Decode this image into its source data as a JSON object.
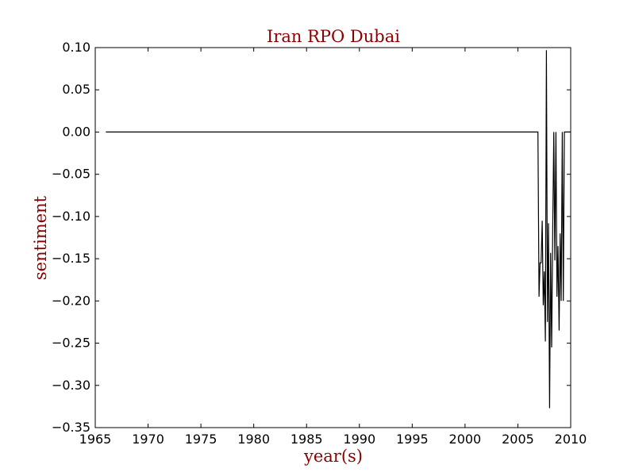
{
  "chart_data": {
    "type": "line",
    "title": "Iran RPO Dubai",
    "xlabel": "year(s)",
    "ylabel": "sentiment",
    "xlim": [
      1965,
      2010
    ],
    "ylim": [
      -0.35,
      0.1
    ],
    "x_ticks": [
      1965,
      1970,
      1975,
      1980,
      1985,
      1990,
      1995,
      2000,
      2005,
      2010
    ],
    "y_ticks": [
      0.1,
      0.05,
      0.0,
      -0.05,
      -0.1,
      -0.15,
      -0.2,
      -0.25,
      -0.3,
      -0.35
    ],
    "x_tick_labels": [
      "1965",
      "1970",
      "1975",
      "1980",
      "1985",
      "1990",
      "1995",
      "2000",
      "2005",
      "2010"
    ],
    "y_tick_labels": [
      "0.10",
      "0.05",
      "0.00",
      "−0.05",
      "−0.10",
      "−0.15",
      "−0.20",
      "−0.25",
      "−0.30",
      "−0.35"
    ],
    "grid": false,
    "series": [
      {
        "x": [
          1966.0,
          2006.9,
          2007.0,
          2007.1,
          2007.2,
          2007.3,
          2007.4,
          2007.5,
          2007.6,
          2007.7,
          2007.8,
          2007.9,
          2008.0,
          2008.1,
          2008.2,
          2008.3,
          2008.4,
          2008.5,
          2008.6,
          2008.7,
          2008.8,
          2008.9,
          2009.0,
          2009.1,
          2009.2,
          2009.3,
          2009.4,
          2009.5,
          2009.6,
          2009.7,
          2009.8,
          2009.9,
          2010.0
        ],
        "values": [
          0.0,
          0.0,
          -0.195,
          -0.155,
          -0.155,
          -0.105,
          -0.205,
          -0.165,
          -0.248,
          0.097,
          -0.225,
          -0.108,
          -0.327,
          -0.143,
          -0.255,
          -0.11,
          0.0,
          -0.152,
          0.0,
          -0.195,
          -0.135,
          -0.235,
          -0.12,
          -0.2,
          0.0,
          -0.2,
          0.0,
          0.0,
          0.0,
          0.0,
          0.0,
          0.0,
          0.0
        ]
      }
    ],
    "colors": {
      "line": "#000000",
      "title": "#8b0000",
      "axis_label": "#8b0000"
    }
  }
}
